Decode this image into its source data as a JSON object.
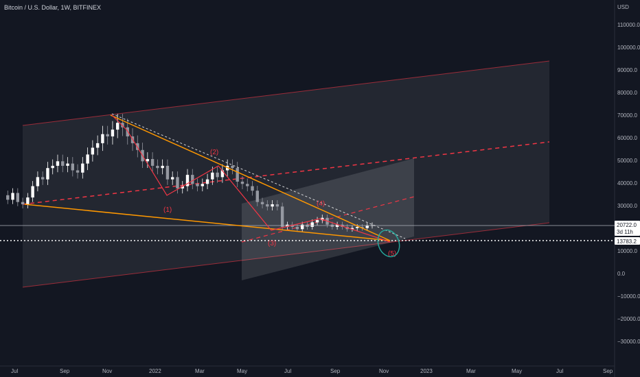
{
  "header": {
    "symbol": "Bitcoin / U.S. Dollar, 1W, BITFINEX"
  },
  "axis": {
    "currency": "USD",
    "y_ticks": [
      "110000.0",
      "100000.0",
      "90000.0",
      "80000.0",
      "70000.0",
      "60000.0",
      "50000.0",
      "40000.0",
      "30000.0",
      "20000.0",
      "10000.0",
      "0.0",
      "−10000.0",
      "−20000.0",
      "−30000.0"
    ],
    "x_ticks": [
      "Jul",
      "Sep",
      "Nov",
      "2022",
      "Mar",
      "May",
      "Jul",
      "Sep",
      "Nov",
      "2023",
      "Mar",
      "May",
      "Jul",
      "Sep"
    ]
  },
  "price_tags": {
    "current": "20722.0",
    "countdown": "3d 11h",
    "level": "13783.2"
  },
  "wave_labels": [
    "(1)",
    "(2)",
    "(3)",
    "(4)",
    "(5)"
  ],
  "colors": {
    "background": "#131722",
    "bull": "#ffffff",
    "bear": "#9598a1",
    "wave": "#f23645",
    "trend": "#ff9800",
    "channel": "#787b86"
  },
  "chart_data": {
    "type": "candlestick",
    "title": "Bitcoin / U.S. Dollar, 1W, BITFINEX",
    "ylabel": "USD",
    "ylim": [
      -30000,
      110000
    ],
    "weekly_closes_approx": [
      34000,
      32000,
      35000,
      31000,
      30000,
      33000,
      38000,
      42000,
      41000,
      46000,
      47000,
      49000,
      47000,
      48000,
      45000,
      44000,
      48000,
      52000,
      55000,
      57000,
      61000,
      60000,
      63000,
      66000,
      64000,
      60000,
      57000,
      54000,
      49000,
      50000,
      47000,
      46000,
      47000,
      41000,
      42000,
      37000,
      38000,
      43000,
      39000,
      38000,
      39000,
      41000,
      44000,
      42000,
      45000,
      47000,
      46000,
      40000,
      39000,
      38000,
      36000,
      31000,
      30000,
      29000,
      30000,
      29000,
      20000,
      21000,
      20000,
      19000,
      21000,
      20000,
      22000,
      23000,
      24000,
      21000,
      20000,
      21000,
      20000,
      19000,
      19500,
      20000,
      19500,
      20500,
      20722
    ],
    "current_price": 20722.0,
    "horizontal_level": 13783.2,
    "wave_points": [
      {
        "label": "(1)",
        "price": 33000
      },
      {
        "label": "(2)",
        "price": 48000
      },
      {
        "label": "(3)",
        "price": 17600
      },
      {
        "label": "(4)",
        "price": 24000
      },
      {
        "label": "(5)",
        "price": 13000
      }
    ]
  }
}
